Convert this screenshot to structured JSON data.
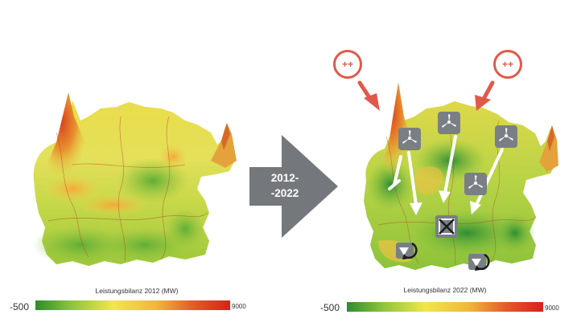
{
  "transition_label": "2012-\n-2022",
  "legends": [
    {
      "title": "Leistungsbilanz 2012 (MW)",
      "min_label": "-500",
      "max_label": "9000"
    },
    {
      "title": "Leistungsbilanz 2022 (MW)",
      "min_label": "-500",
      "max_label": "9000"
    }
  ],
  "callouts": [
    {
      "label": "++"
    },
    {
      "label": "++"
    }
  ],
  "icons": {
    "wind_turbine": "wind-turbine-icon",
    "blocked": "crossed-box-icon",
    "storage": "cycle-storage-icon"
  },
  "colors": {
    "scale_low": "#2e8b2e",
    "scale_mid": "#f2e64a",
    "scale_high": "#d9201c",
    "callout": "#e05a4b",
    "transition_arrow": "#74787c",
    "icon_box": "#7a7f85"
  }
}
